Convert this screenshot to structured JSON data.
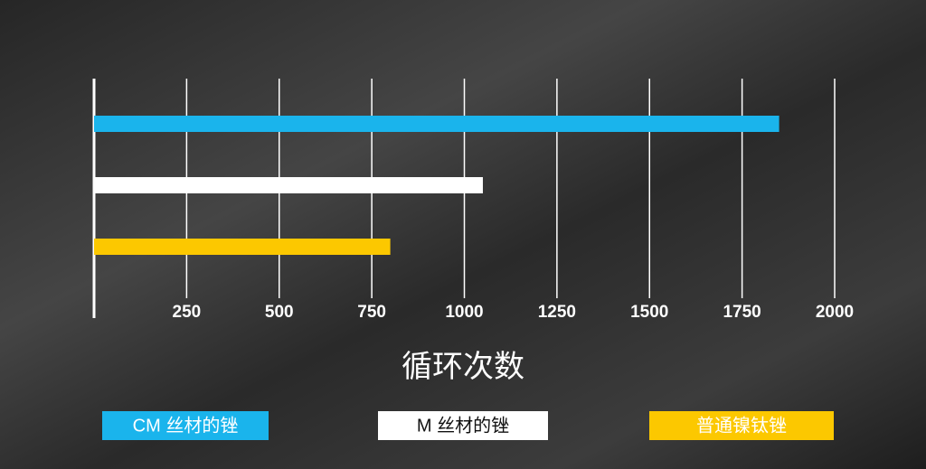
{
  "chart_data": {
    "type": "bar",
    "orientation": "horizontal",
    "x_label": "循环次数",
    "categories": [
      null
    ],
    "series": [
      {
        "name": "CM 丝材的锉",
        "color": "#1ab4ec",
        "values": [
          1850
        ]
      },
      {
        "name": "M 丝材的锉",
        "color": "#ffffff",
        "values": [
          1050
        ]
      },
      {
        "name": "普通镍钛锉",
        "color": "#fcc800",
        "values": [
          800
        ]
      }
    ],
    "xlim": [
      0,
      2000
    ],
    "xticks": [
      250,
      500,
      750,
      1000,
      1250,
      1500,
      1750,
      2000
    ],
    "grid": true
  }
}
